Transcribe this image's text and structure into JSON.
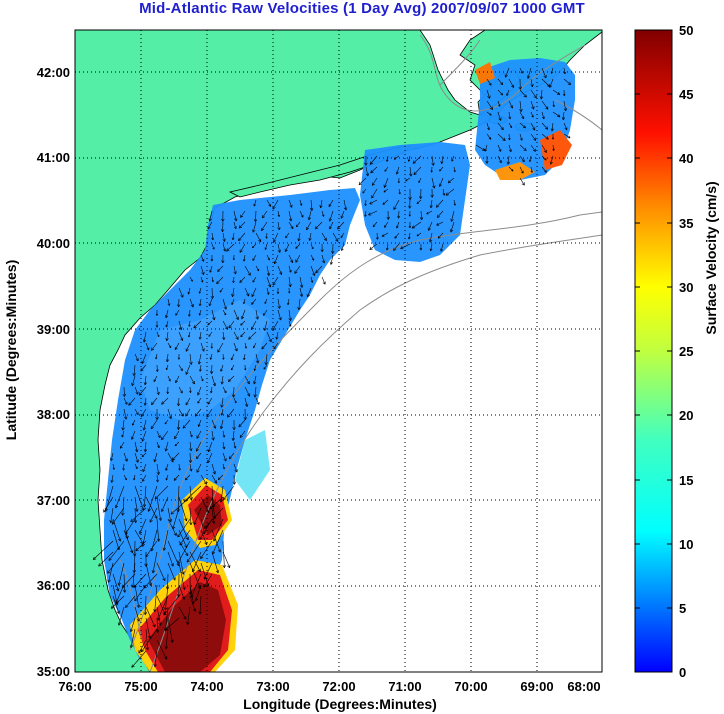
{
  "title": "Mid-Atlantic Raw Velocities (1 Day Avg) 2007/09/07 1000 GMT",
  "map": {
    "x_axis_label": "Longitude (Degrees:Minutes)",
    "y_axis_label": "Latitude (Degrees:Minutes)",
    "lon_range": [
      -76,
      -68
    ],
    "lat_range": [
      35,
      42.5
    ],
    "lon_ticks": [
      "76:00",
      "75:00",
      "74:00",
      "73:00",
      "72:00",
      "71:00",
      "70:00",
      "69:00",
      "68:00"
    ],
    "lat_ticks": [
      "35:00",
      "36:00",
      "37:00",
      "38:00",
      "39:00",
      "40:00",
      "41:00",
      "42:00"
    ],
    "land_color": "#55eea6",
    "grid": "dotted"
  },
  "colorbar": {
    "label": "Surface Velocity (cm/s)",
    "range": [
      0,
      50
    ],
    "ticks": [
      "0",
      "5",
      "10",
      "15",
      "20",
      "25",
      "30",
      "35",
      "40",
      "45",
      "50"
    ],
    "colormap": "jet"
  }
}
